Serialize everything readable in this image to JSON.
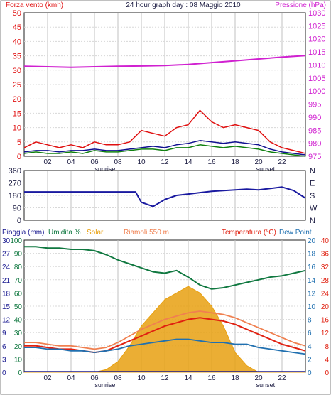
{
  "header": {
    "left": "Forza vento (kmh)",
    "center": "24 hour graph day : 08 Maggio 2010",
    "right": "Pressione (hPa)"
  },
  "colors": {
    "wind": "#e01010",
    "wind_avg": "#101090",
    "wind_dir": "#1a1aa0",
    "pressure": "#d020d0",
    "gust_low": "#108010",
    "humidity": "#107840",
    "solar": "#e8a010",
    "temperature": "#e02010",
    "dew_point": "#2070b0",
    "heat_index": "#f08050",
    "grid": "#c0c0c0",
    "frame": "#202020"
  },
  "x_ticks": [
    "02",
    "04",
    "06",
    "08",
    "10",
    "12",
    "14",
    "16",
    "18",
    "20",
    "22"
  ],
  "x_events": {
    "sunrise": "sunrise",
    "sunset": "sunset"
  },
  "chart_data": [
    {
      "type": "line",
      "title": "24 hour graph day : 08 Maggio 2010",
      "y_left_label": "Forza vento (kmh)",
      "y_right_label": "Pressione (hPa)",
      "y_left_ticks": [
        "0",
        "5",
        "10",
        "15",
        "20",
        "25",
        "30",
        "35",
        "40",
        "45",
        "50"
      ],
      "y_right_ticks": [
        "975",
        "980",
        "985",
        "990",
        "995",
        "1000",
        "1005",
        "1010",
        "1015",
        "1020",
        "1025",
        "1030"
      ],
      "ylim_left": [
        0,
        50
      ],
      "ylim_right": [
        975,
        1030
      ],
      "xlim": [
        0,
        24
      ],
      "series": [
        {
          "key": "pressure",
          "axis": "right",
          "x": [
            0,
            2,
            4,
            6,
            8,
            10,
            12,
            14,
            16,
            18,
            20,
            22,
            24
          ],
          "values": [
            1009.5,
            1009.3,
            1009.1,
            1009.3,
            1009.5,
            1009.6,
            1009.8,
            1010.2,
            1010.9,
            1011.6,
            1012.3,
            1013,
            1013.6
          ]
        },
        {
          "key": "wind",
          "axis": "left",
          "x": [
            0,
            1,
            2,
            3,
            4,
            5,
            6,
            7,
            8,
            9,
            10,
            11,
            12,
            13,
            14,
            15,
            16,
            17,
            18,
            19,
            20,
            21,
            22,
            23,
            24
          ],
          "values": [
            3,
            5,
            4,
            3,
            4,
            3,
            5,
            4,
            4,
            5,
            9,
            8,
            7,
            10,
            11,
            16,
            12,
            10,
            11,
            10,
            9,
            5,
            3,
            2,
            1
          ]
        },
        {
          "key": "wind_avg",
          "axis": "left",
          "x": [
            0,
            1,
            2,
            3,
            4,
            5,
            6,
            7,
            8,
            9,
            10,
            11,
            12,
            13,
            14,
            15,
            16,
            17,
            18,
            19,
            20,
            21,
            22,
            23,
            24
          ],
          "values": [
            1.5,
            2,
            2,
            1.5,
            2,
            2,
            2.5,
            2,
            2,
            2.5,
            3,
            3.5,
            3,
            4,
            4.5,
            5.5,
            5,
            4.5,
            5,
            4.5,
            4,
            2.5,
            1.5,
            1,
            0.5
          ]
        },
        {
          "key": "gust_low",
          "axis": "left",
          "x": [
            0,
            1,
            2,
            3,
            4,
            5,
            6,
            7,
            8,
            9,
            10,
            11,
            12,
            13,
            14,
            15,
            16,
            17,
            18,
            19,
            20,
            21,
            22,
            23,
            24
          ],
          "values": [
            1,
            1.5,
            1,
            1,
            1.5,
            1,
            2,
            1.5,
            1.5,
            2,
            2.5,
            2.5,
            2,
            3,
            3,
            4,
            3.5,
            3,
            3.5,
            3,
            2.5,
            1.5,
            1,
            0.5,
            0
          ]
        }
      ]
    },
    {
      "type": "line",
      "y_left_ticks": [
        "0",
        "90",
        "180",
        "270",
        "360"
      ],
      "y_right_ticks": [
        "N",
        "W",
        "S",
        "E",
        "N"
      ],
      "ylim": [
        0,
        360
      ],
      "xlim": [
        0,
        24
      ],
      "series": [
        {
          "key": "wind_dir",
          "x": [
            0,
            2,
            4,
            6,
            8,
            9.5,
            10,
            11,
            12,
            13,
            14,
            15,
            16,
            17,
            18,
            19,
            20,
            21,
            22,
            23,
            24
          ],
          "values": [
            205,
            205,
            205,
            205,
            205,
            205,
            130,
            100,
            150,
            180,
            190,
            200,
            210,
            215,
            220,
            225,
            220,
            230,
            240,
            215,
            160
          ]
        }
      ]
    },
    {
      "type": "line",
      "legend": [
        "Pioggia (mm)",
        "Umidita %",
        "Solar",
        "Riamoli 550 m",
        "Temperatura (°C)",
        "Dew Point"
      ],
      "y_left_ticks": [
        "0",
        "10",
        "20",
        "30",
        "40",
        "50",
        "60",
        "70",
        "80",
        "90",
        "100"
      ],
      "y_left_ticks_rain": [
        "0",
        "3",
        "6",
        "9",
        "12",
        "15",
        "18",
        "21",
        "24",
        "27",
        "30"
      ],
      "y_right_ticks": [
        "0",
        "4",
        "8",
        "12",
        "16",
        "20",
        "24",
        "28",
        "32",
        "36",
        "40"
      ],
      "y_right_ticks_dew": [
        "0",
        "2",
        "4",
        "6",
        "8",
        "10",
        "12",
        "14",
        "16",
        "18",
        "20"
      ],
      "ylim_left": [
        0,
        100
      ],
      "ylim_right": [
        0,
        40
      ],
      "xlim": [
        0,
        24
      ],
      "series": [
        {
          "key": "humidity",
          "axis": "left",
          "x": [
            0,
            1,
            2,
            3,
            4,
            5,
            6,
            7,
            8,
            9,
            10,
            11,
            12,
            13,
            14,
            15,
            16,
            17,
            18,
            19,
            20,
            21,
            22,
            23,
            24
          ],
          "values": [
            95,
            95,
            94,
            94,
            93,
            93,
            92,
            89,
            85,
            82,
            79,
            76,
            75,
            77,
            72,
            66,
            63,
            64,
            66,
            68,
            70,
            72,
            73,
            75,
            77
          ]
        },
        {
          "key": "temperature",
          "axis": "right",
          "x": [
            0,
            1,
            2,
            3,
            4,
            5,
            6,
            7,
            8,
            9,
            10,
            11,
            12,
            13,
            14,
            15,
            16,
            17,
            18,
            19,
            20,
            21,
            22,
            23,
            24
          ],
          "values": [
            8,
            8,
            7.5,
            7,
            7,
            6.5,
            6,
            6.5,
            8,
            9.5,
            11,
            12.5,
            14,
            15,
            16,
            16.5,
            16,
            15.5,
            14.5,
            13,
            11.5,
            10,
            8.5,
            7.5,
            6.5
          ]
        },
        {
          "key": "heat_index",
          "axis": "right",
          "x": [
            0,
            1,
            2,
            3,
            4,
            5,
            6,
            7,
            8,
            9,
            10,
            11,
            12,
            13,
            14,
            15,
            16,
            17,
            18,
            19,
            20,
            21,
            22,
            23,
            24
          ],
          "values": [
            9,
            9,
            8.5,
            8,
            8,
            7.5,
            7,
            7.5,
            9,
            11,
            13,
            14.5,
            16,
            17,
            18,
            18.5,
            18,
            17.5,
            16.5,
            15,
            13.5,
            12,
            10.5,
            9,
            8
          ]
        },
        {
          "key": "dew_point",
          "axis": "right",
          "x": [
            0,
            1,
            2,
            3,
            4,
            5,
            6,
            7,
            8,
            9,
            10,
            11,
            12,
            13,
            14,
            15,
            16,
            17,
            18,
            19,
            20,
            21,
            22,
            23,
            24
          ],
          "values": [
            7.5,
            7.5,
            7,
            7,
            6.5,
            6.5,
            6,
            6.5,
            7,
            8,
            8.5,
            9,
            9.5,
            10,
            10,
            9.5,
            9,
            9,
            8.5,
            8.5,
            7.5,
            7,
            6.5,
            6,
            5.5
          ]
        },
        {
          "key": "solar",
          "axis": "left",
          "x": [
            0,
            6,
            7,
            8,
            9,
            10,
            11,
            12,
            13,
            14,
            15,
            16,
            17,
            18,
            19,
            20,
            24
          ],
          "values": [
            0,
            0,
            2,
            8,
            20,
            35,
            45,
            55,
            60,
            65,
            60,
            50,
            35,
            15,
            5,
            0,
            0
          ]
        },
        {
          "key": "rain",
          "axis": "left",
          "x": [
            0,
            24
          ],
          "values": [
            0.5,
            0.5
          ]
        }
      ]
    }
  ]
}
